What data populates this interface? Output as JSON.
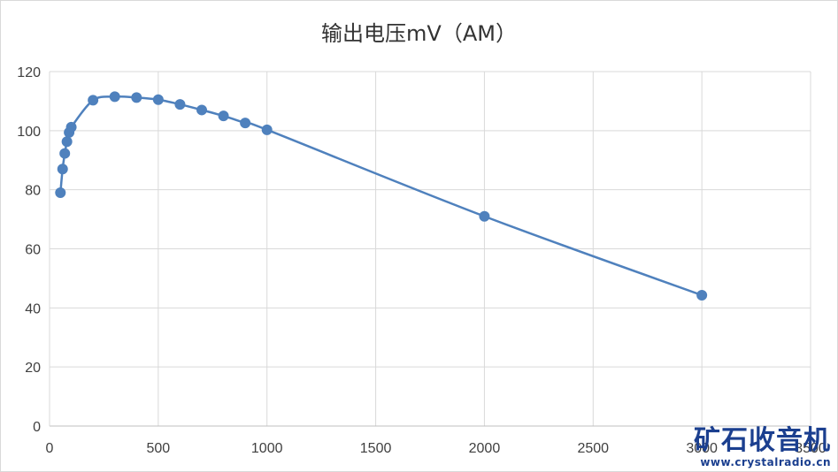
{
  "chart_data": {
    "type": "scatter",
    "title": "输出电压mV（AM）",
    "xlabel": "",
    "ylabel": "",
    "xlim": [
      0,
      3500
    ],
    "ylim": [
      0,
      120
    ],
    "xticks": [
      0,
      500,
      1000,
      1500,
      2000,
      2500,
      3000,
      3500
    ],
    "yticks": [
      0,
      20,
      40,
      60,
      80,
      100,
      120
    ],
    "grid": true,
    "legend": "none",
    "line_style": "smooth line with markers",
    "color": "#4f81bd",
    "series": [
      {
        "x": [
          50,
          60,
          70,
          80,
          90,
          100,
          200,
          300,
          400,
          500,
          600,
          700,
          800,
          900,
          1000,
          2000,
          3000
        ],
        "y": [
          79,
          87,
          92.3,
          96.3,
          99.4,
          101.2,
          110.3,
          111.5,
          111.2,
          110.5,
          108.9,
          107,
          105,
          102.6,
          100.3,
          71,
          44.3
        ]
      }
    ]
  },
  "watermark": {
    "logo_text": "矿石收音机",
    "url": "www.crystalradio.cn"
  }
}
